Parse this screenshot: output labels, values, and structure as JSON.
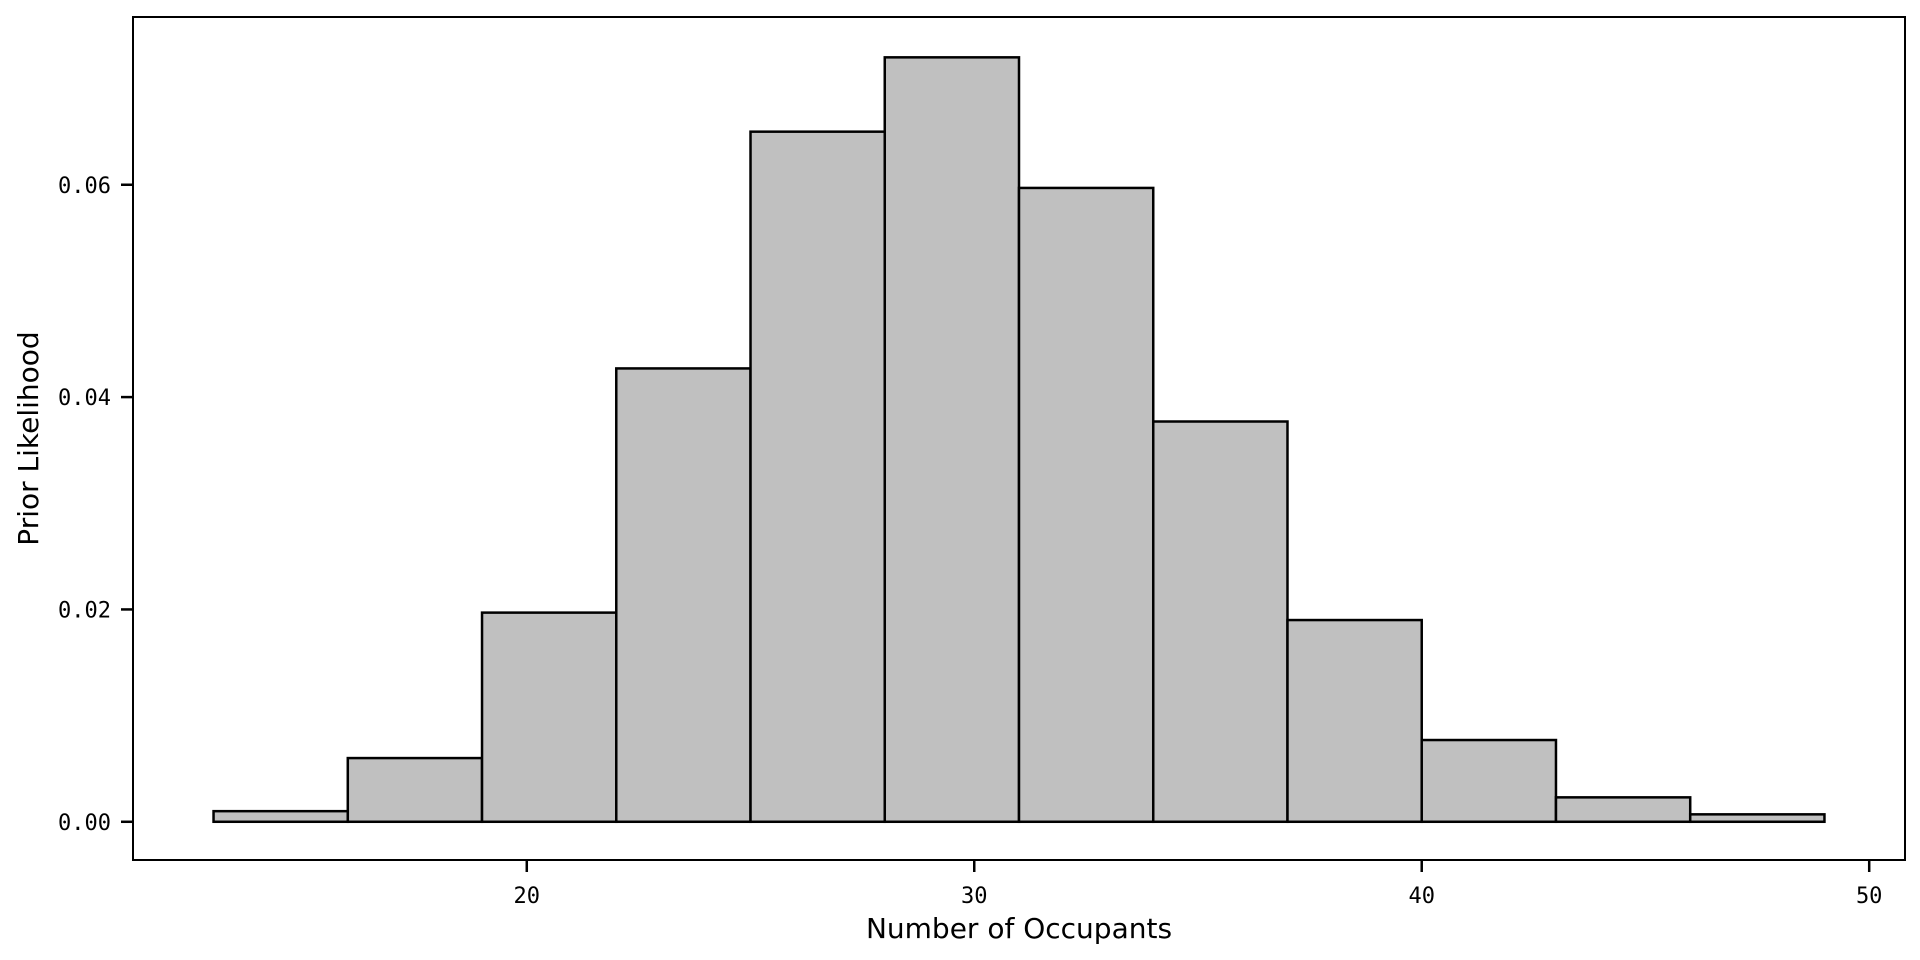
{
  "chart_data": {
    "type": "bar",
    "xlabel": "Number of Occupants",
    "ylabel": "Prior Likelihood",
    "xlim": [
      11.2,
      50.8
    ],
    "ylim": [
      -0.0036,
      0.0758
    ],
    "x_ticks": [
      "20",
      "30",
      "40",
      "50"
    ],
    "y_ticks": [
      "0.00",
      "0.02",
      "0.04",
      "0.06"
    ],
    "bar_fill": "#c0c0c0",
    "bar_stroke": "#000000",
    "grid": false,
    "legend": "none",
    "bins": [
      {
        "x0": 13.0,
        "x1": 16.0,
        "value": 0.001
      },
      {
        "x0": 16.0,
        "x1": 19.0,
        "value": 0.006
      },
      {
        "x0": 19.0,
        "x1": 22.0,
        "value": 0.0197
      },
      {
        "x0": 22.0,
        "x1": 25.0,
        "value": 0.0427
      },
      {
        "x0": 25.0,
        "x1": 28.0,
        "value": 0.065
      },
      {
        "x0": 28.0,
        "x1": 31.0,
        "value": 0.072
      },
      {
        "x0": 31.0,
        "x1": 34.0,
        "value": 0.0597
      },
      {
        "x0": 34.0,
        "x1": 37.0,
        "value": 0.0377
      },
      {
        "x0": 37.0,
        "x1": 40.0,
        "value": 0.019
      },
      {
        "x0": 40.0,
        "x1": 43.0,
        "value": 0.0077
      },
      {
        "x0": 43.0,
        "x1": 46.0,
        "value": 0.0023
      },
      {
        "x0": 46.0,
        "x1": 49.0,
        "value": 0.0007
      }
    ]
  }
}
